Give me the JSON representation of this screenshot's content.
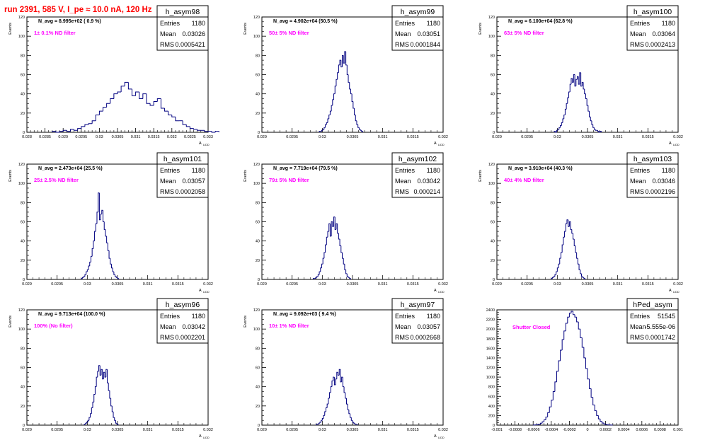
{
  "page_title": "run 2391,   585 V, I_pe ≈ 10.0 nA, 120 Hz",
  "colors": {
    "title": "#ff0000",
    "histogram": "#000080",
    "annotation": "#ff00ff",
    "axis": "#000000"
  },
  "chart_data": [
    {
      "type": "bar",
      "name": "h_asym98",
      "stats": {
        "entries_label": "Entries",
        "entries": "1180",
        "mean_label": "Mean",
        "mean": "0.03026",
        "rms_label": "RMS",
        "rms": "0.0005421"
      },
      "navg_text": "N_avg = 8.995e+02 ( 0.9 %)",
      "annotation": "1± 0.1% ND filter",
      "ylabel": "Events",
      "xlabel": "A",
      "xlabel_sub": "LIDD",
      "xlim": [
        0.028,
        0.033
      ],
      "ylim": [
        0,
        120
      ],
      "yticks": [
        0,
        20,
        40,
        60,
        80,
        100,
        120
      ],
      "xticks": [
        0.028,
        0.0285,
        0.029,
        0.0295,
        0.03,
        0.0305,
        0.031,
        0.0315,
        0.032,
        0.0325,
        0.033
      ],
      "xtick_labels": [
        "0.028",
        "0.0285",
        "0.029",
        "0.0295",
        "0.03",
        "0.0305",
        "0.031",
        "0.0315",
        "0.032",
        "0.0325",
        "0.033"
      ],
      "bins": {
        "min": 0.0287,
        "width": 0.0001,
        "counts": [
          1,
          0,
          1,
          2,
          1,
          3,
          2,
          4,
          6,
          8,
          9,
          12,
          18,
          22,
          26,
          30,
          35,
          40,
          42,
          48,
          52,
          45,
          38,
          42,
          35,
          40,
          30,
          28,
          32,
          35,
          25,
          22,
          18,
          16,
          12,
          12,
          8,
          6,
          4,
          3,
          2,
          2,
          1,
          1,
          0,
          1
        ]
      }
    },
    {
      "type": "bar",
      "name": "h_asym99",
      "stats": {
        "entries_label": "Entries",
        "entries": "1180",
        "mean_label": "Mean",
        "mean": "0.03051",
        "rms_label": "RMS",
        "rms": "0.0001844"
      },
      "navg_text": "N_avg = 4.902e+04 (50.5 %)",
      "annotation": "50± 5% ND filter",
      "ylabel": "Events",
      "xlabel": "A",
      "xlabel_sub": "LIDD",
      "xlim": [
        0.029,
        0.032
      ],
      "ylim": [
        0,
        120
      ],
      "yticks": [
        0,
        20,
        40,
        60,
        80,
        100,
        120
      ],
      "xticks": [
        0.029,
        0.0295,
        0.03,
        0.0305,
        0.031,
        0.0315,
        0.032
      ],
      "xtick_labels": [
        "0.029",
        "0.0295",
        "0.03",
        "0.0305",
        "0.031",
        "0.0315",
        "0.032"
      ],
      "bins": {
        "min": 0.02995,
        "width": 2e-05,
        "counts": [
          1,
          1,
          2,
          3,
          5,
          8,
          10,
          14,
          18,
          22,
          28,
          34,
          40,
          48,
          55,
          62,
          70,
          75,
          68,
          80,
          72,
          84,
          70,
          60,
          52,
          45,
          40,
          32,
          25,
          18,
          12,
          8,
          5,
          3,
          2,
          1
        ]
      }
    },
    {
      "type": "bar",
      "name": "h_asym100",
      "stats": {
        "entries_label": "Entries",
        "entries": "1180",
        "mean_label": "Mean",
        "mean": "0.03064",
        "rms_label": "RMS",
        "rms": "0.0002413"
      },
      "navg_text": "N_avg = 6.100e+04 (62.8 %)",
      "annotation": "63± 5% ND filter",
      "ylabel": "Events",
      "xlabel": "A",
      "xlabel_sub": "LIDD",
      "xlim": [
        0.029,
        0.032
      ],
      "ylim": [
        0,
        120
      ],
      "yticks": [
        0,
        20,
        40,
        60,
        80,
        100,
        120
      ],
      "xticks": [
        0.029,
        0.0295,
        0.03,
        0.0305,
        0.031,
        0.0315,
        0.032
      ],
      "xtick_labels": [
        "0.029",
        "0.0295",
        "0.03",
        "0.0305",
        "0.031",
        "0.0315",
        "0.032"
      ],
      "bins": {
        "min": 0.02995,
        "width": 2e-05,
        "counts": [
          1,
          0,
          2,
          3,
          5,
          7,
          10,
          14,
          18,
          24,
          30,
          36,
          42,
          50,
          56,
          52,
          60,
          48,
          55,
          58,
          50,
          62,
          48,
          52,
          45,
          40,
          35,
          28,
          22,
          16,
          12,
          8,
          5,
          3,
          2,
          2,
          1,
          0,
          1
        ]
      }
    },
    {
      "type": "bar",
      "name": "h_asym101",
      "stats": {
        "entries_label": "Entries",
        "entries": "1180",
        "mean_label": "Mean",
        "mean": "0.03057",
        "rms_label": "RMS",
        "rms": "0.0002058"
      },
      "navg_text": "N_avg = 2.473e+04 (25.5 %)",
      "annotation": "25± 2.5% ND filter",
      "ylabel": "Events",
      "xlabel": "A",
      "xlabel_sub": "LIDD",
      "xlim": [
        0.029,
        0.032
      ],
      "ylim": [
        0,
        120
      ],
      "yticks": [
        0,
        20,
        40,
        60,
        80,
        100,
        120
      ],
      "xticks": [
        0.029,
        0.0295,
        0.03,
        0.0305,
        0.031,
        0.0315,
        0.032
      ],
      "xtick_labels": [
        "0.029",
        "0.0295",
        "0.03",
        "0.0305",
        "0.031",
        "0.0315",
        "0.032"
      ],
      "bins": {
        "min": 0.0299,
        "width": 2e-05,
        "counts": [
          1,
          2,
          3,
          5,
          8,
          10,
          14,
          18,
          24,
          32,
          40,
          50,
          58,
          70,
          90,
          62,
          68,
          72,
          60,
          52,
          45,
          38,
          30,
          22,
          16,
          12,
          8,
          5,
          3,
          2,
          1
        ]
      }
    },
    {
      "type": "bar",
      "name": "h_asym102",
      "stats": {
        "entries_label": "Entries",
        "entries": "1180",
        "mean_label": "Mean",
        "mean": "0.03042",
        "rms_label": "RMS",
        "rms": "0.000214"
      },
      "navg_text": "N_avg = 7.719e+04 (79.5 %)",
      "annotation": "79± 5% ND filter",
      "ylabel": "Events",
      "xlabel": "A",
      "xlabel_sub": "LIDD",
      "xlim": [
        0.029,
        0.032
      ],
      "ylim": [
        0,
        120
      ],
      "yticks": [
        0,
        20,
        40,
        60,
        80,
        100,
        120
      ],
      "xticks": [
        0.029,
        0.0295,
        0.03,
        0.0305,
        0.031,
        0.0315,
        0.032
      ],
      "xtick_labels": [
        "0.029",
        "0.0295",
        "0.03",
        "0.0305",
        "0.031",
        "0.0315",
        "0.032"
      ],
      "bins": {
        "min": 0.02985,
        "width": 2e-05,
        "counts": [
          1,
          1,
          2,
          3,
          5,
          8,
          12,
          16,
          22,
          28,
          36,
          44,
          50,
          58,
          45,
          60,
          55,
          65,
          52,
          58,
          48,
          42,
          35,
          28,
          22,
          16,
          10,
          6,
          3,
          2,
          1
        ]
      }
    },
    {
      "type": "bar",
      "name": "h_asym103",
      "stats": {
        "entries_label": "Entries",
        "entries": "1180",
        "mean_label": "Mean",
        "mean": "0.03046",
        "rms_label": "RMS",
        "rms": "0.0002196"
      },
      "navg_text": "N_avg = 3.910e+04 (40.3 %)",
      "annotation": "40± 4% ND filter",
      "ylabel": "Events",
      "xlabel": "A",
      "xlabel_sub": "LIDD",
      "xlim": [
        0.029,
        0.032
      ],
      "ylim": [
        0,
        120
      ],
      "yticks": [
        0,
        20,
        40,
        60,
        80,
        100,
        120
      ],
      "xticks": [
        0.029,
        0.0295,
        0.03,
        0.0305,
        0.031,
        0.0315,
        0.032
      ],
      "xtick_labels": [
        "0.029",
        "0.0295",
        "0.03",
        "0.0305",
        "0.031",
        "0.0315",
        "0.032"
      ],
      "bins": {
        "min": 0.0299,
        "width": 2e-05,
        "counts": [
          1,
          2,
          3,
          5,
          8,
          12,
          16,
          22,
          28,
          36,
          44,
          50,
          58,
          62,
          55,
          60,
          52,
          48,
          42,
          35,
          28,
          22,
          16,
          10,
          6,
          3,
          2,
          1
        ]
      }
    },
    {
      "type": "bar",
      "name": "h_asym96",
      "stats": {
        "entries_label": "Entries",
        "entries": "1180",
        "mean_label": "Mean",
        "mean": "0.03042",
        "rms_label": "RMS",
        "rms": "0.0002201"
      },
      "navg_text": "N_avg = 9.713e+04 (100.0 %)",
      "annotation": "100% (No filter)",
      "ylabel": "Events",
      "xlabel": "A",
      "xlabel_sub": "LIDD",
      "xlim": [
        0.029,
        0.032
      ],
      "ylim": [
        0,
        120
      ],
      "yticks": [
        0,
        20,
        40,
        60,
        80,
        100,
        120
      ],
      "xticks": [
        0.029,
        0.0295,
        0.03,
        0.0305,
        0.031,
        0.0315,
        0.032
      ],
      "xtick_labels": [
        "0.029",
        "0.0295",
        "0.03",
        "0.0305",
        "0.031",
        "0.0315",
        "0.032"
      ],
      "bins": {
        "min": 0.02995,
        "width": 2e-05,
        "counts": [
          1,
          2,
          3,
          5,
          8,
          12,
          18,
          24,
          32,
          40,
          50,
          56,
          62,
          52,
          58,
          48,
          55,
          50,
          58,
          44,
          36,
          28,
          20,
          14,
          8,
          5,
          2,
          1
        ]
      }
    },
    {
      "type": "bar",
      "name": "h_asym97",
      "stats": {
        "entries_label": "Entries",
        "entries": "1180",
        "mean_label": "Mean",
        "mean": "0.03057",
        "rms_label": "RMS",
        "rms": "0.0002668"
      },
      "navg_text": "N_avg = 9.092e+03 ( 9.4 %)",
      "annotation": "10± 1% ND filter",
      "ylabel": "Events",
      "xlabel": "A",
      "xlabel_sub": "LIDD",
      "xlim": [
        0.029,
        0.032
      ],
      "ylim": [
        0,
        120
      ],
      "yticks": [
        0,
        20,
        40,
        60,
        80,
        100,
        120
      ],
      "xticks": [
        0.029,
        0.0295,
        0.03,
        0.0305,
        0.031,
        0.0315,
        0.032
      ],
      "xtick_labels": [
        "0.029",
        "0.0295",
        "0.03",
        "0.0305",
        "0.031",
        "0.0315",
        "0.032"
      ],
      "bins": {
        "min": 0.0299,
        "width": 2e-05,
        "counts": [
          1,
          1,
          2,
          3,
          5,
          7,
          10,
          14,
          18,
          22,
          28,
          34,
          40,
          46,
          50,
          42,
          48,
          55,
          52,
          58,
          45,
          50,
          40,
          34,
          28,
          22,
          16,
          12,
          8,
          5,
          3,
          2,
          1,
          1
        ]
      }
    },
    {
      "type": "bar",
      "name": "hPed_asym",
      "stats": {
        "entries_label": "Entries",
        "entries": "51545",
        "mean_label": "Mean",
        "mean": "-5.555e-06",
        "rms_label": "RMS",
        "rms": "0.0001742"
      },
      "navg_text": "",
      "annotation": "Shutter Closed",
      "ylabel": "",
      "xlabel": "",
      "xlabel_sub": "",
      "xlim": [
        -0.001,
        0.001
      ],
      "ylim": [
        0,
        2400
      ],
      "yticks": [
        0,
        200,
        400,
        600,
        800,
        1000,
        1200,
        1400,
        1600,
        1800,
        2000,
        2200,
        2400
      ],
      "xticks": [
        -0.001,
        -0.0008,
        -0.0006,
        -0.0004,
        -0.0002,
        0,
        0.0002,
        0.0004,
        0.0006,
        0.0008,
        0.001
      ],
      "xtick_labels": [
        "-0.001",
        "-0.0008",
        "-0.0006",
        "-0.0004",
        "-0.0002",
        "0",
        "0.0002",
        "0.0004",
        "0.0006",
        "0.0008",
        "0.001"
      ],
      "bins": {
        "min": -0.0006,
        "width": 2e-05,
        "counts": [
          2,
          5,
          10,
          20,
          40,
          70,
          110,
          170,
          260,
          380,
          520,
          700,
          900,
          1120,
          1340,
          1560,
          1780,
          1960,
          2120,
          2250,
          2330,
          2370,
          2300,
          2250,
          2150,
          2000,
          1820,
          1620,
          1400,
          1180,
          960,
          760,
          580,
          420,
          300,
          200,
          130,
          80,
          45,
          25,
          12,
          6,
          3,
          1
        ]
      }
    }
  ]
}
